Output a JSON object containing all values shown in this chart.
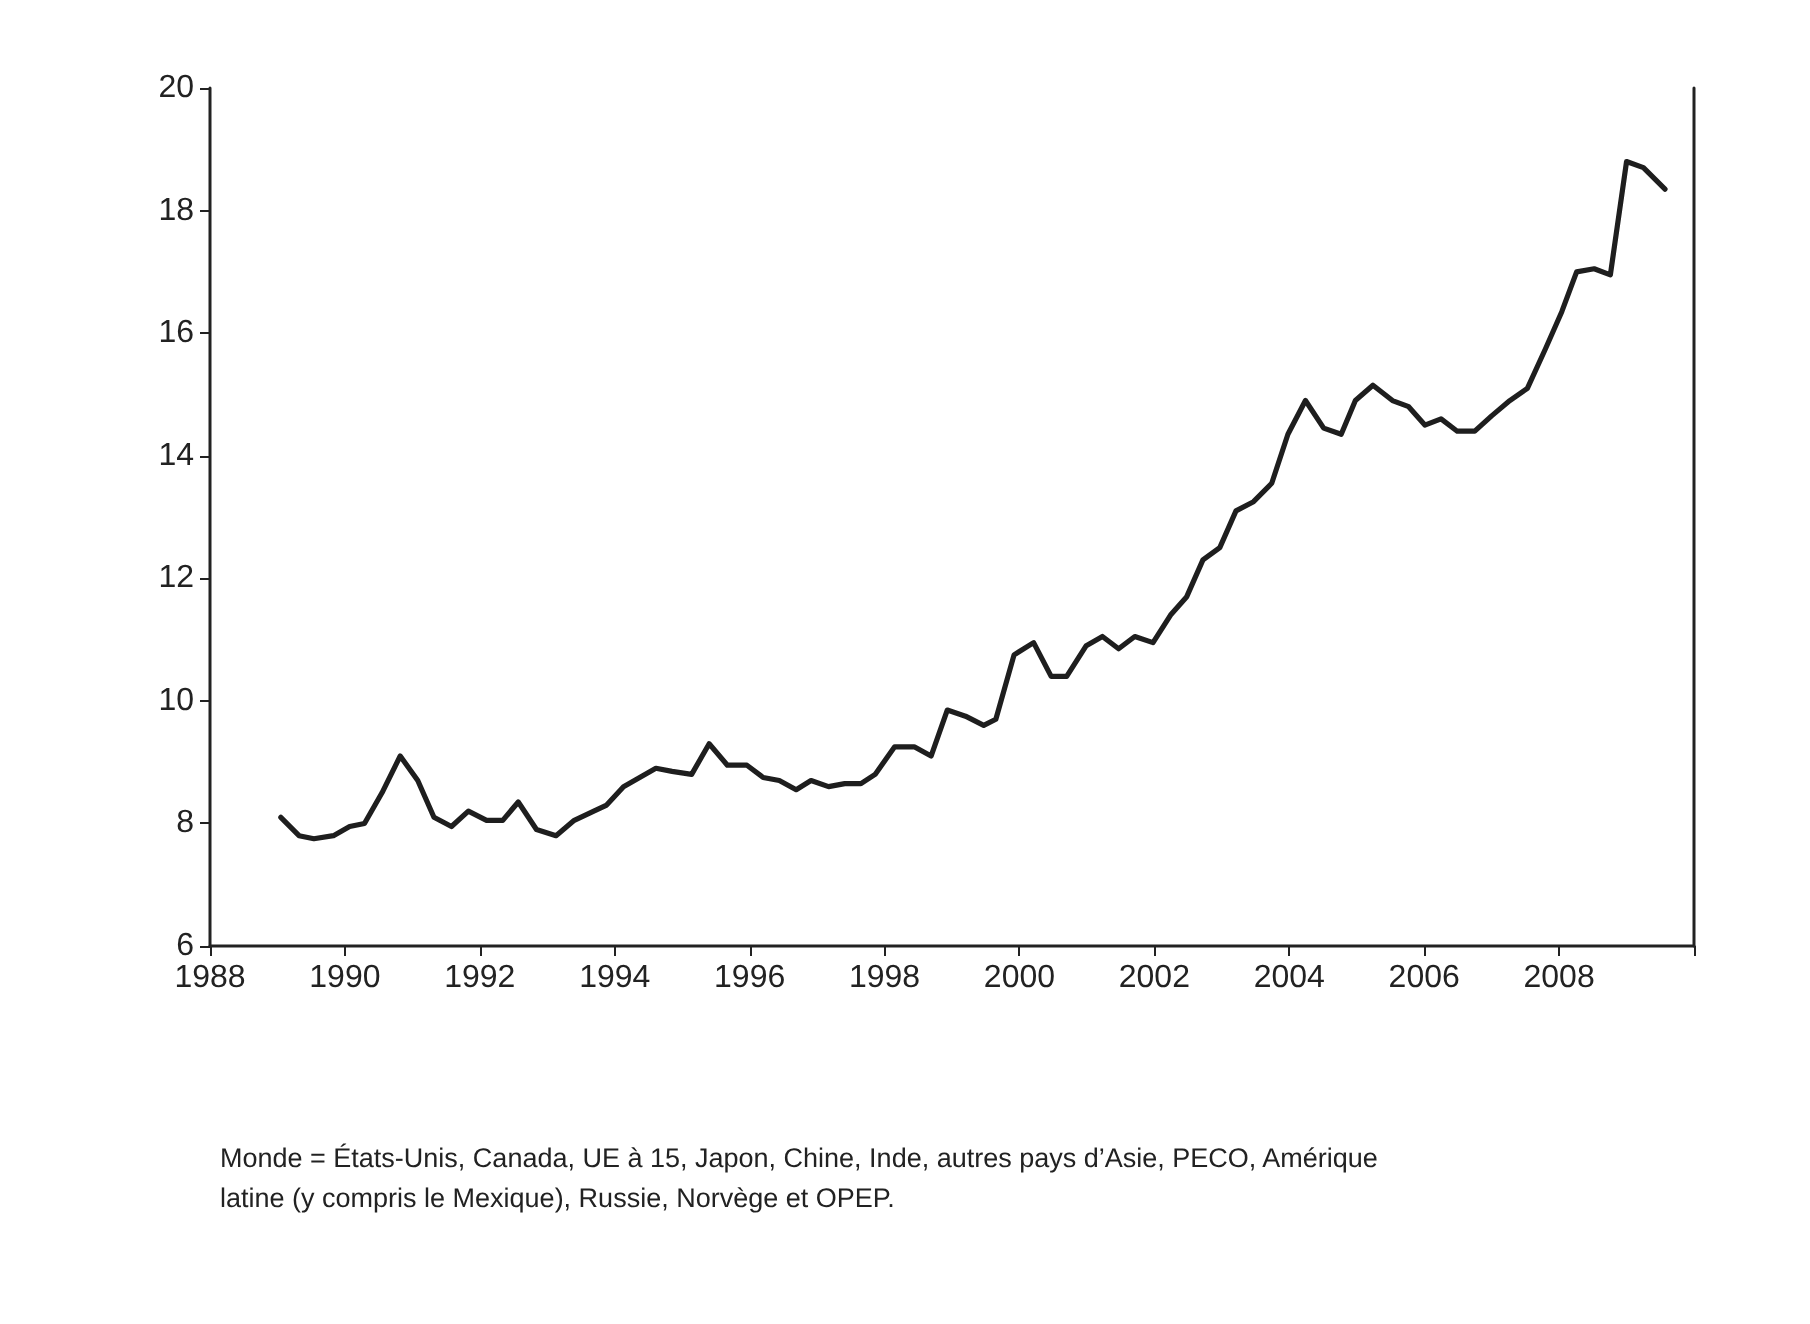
{
  "chart_data": {
    "type": "line",
    "x": [
      1989.05,
      1989.32,
      1989.54,
      1989.83,
      1990.07,
      1990.29,
      1990.55,
      1990.82,
      1991.08,
      1991.32,
      1991.58,
      1991.83,
      1992.1,
      1992.34,
      1992.57,
      1992.84,
      1993.13,
      1993.4,
      1993.69,
      1993.88,
      1994.13,
      1994.37,
      1994.61,
      1994.85,
      1995.14,
      1995.4,
      1995.67,
      1995.96,
      1996.2,
      1996.44,
      1996.69,
      1996.91,
      1997.17,
      1997.41,
      1997.65,
      1997.86,
      1998.15,
      1998.44,
      1998.69,
      1998.93,
      1999.2,
      1999.47,
      1999.65,
      1999.92,
      2000.21,
      2000.47,
      2000.7,
      2000.99,
      2001.23,
      2001.47,
      2001.71,
      2001.98,
      2002.24,
      2002.48,
      2002.72,
      2002.97,
      2003.21,
      2003.47,
      2003.74,
      2003.98,
      2004.24,
      2004.51,
      2004.77,
      2004.98,
      2005.24,
      2005.53,
      2005.77,
      2006.01,
      2006.25,
      2006.49,
      2006.75,
      2007.0,
      2007.27,
      2007.53,
      2007.8,
      2008.04,
      2008.26,
      2008.52,
      2008.76,
      2009.0,
      2009.25,
      2009.57
    ],
    "series": [
      {
        "color": "#1e1e1e",
        "values": [
          8.1,
          7.8,
          7.75,
          7.8,
          7.95,
          8.0,
          8.5,
          9.1,
          8.7,
          8.1,
          7.95,
          8.2,
          8.05,
          8.05,
          8.35,
          7.9,
          7.8,
          8.05,
          8.2,
          8.3,
          8.6,
          8.75,
          8.9,
          8.85,
          8.8,
          9.3,
          8.95,
          8.95,
          8.75,
          8.7,
          8.55,
          8.7,
          8.6,
          8.65,
          8.65,
          8.8,
          9.25,
          9.25,
          9.1,
          9.85,
          9.75,
          9.6,
          9.7,
          10.75,
          10.95,
          10.4,
          10.4,
          10.9,
          11.05,
          10.85,
          11.05,
          10.95,
          11.4,
          11.7,
          12.3,
          12.5,
          13.1,
          13.25,
          13.55,
          14.35,
          14.9,
          14.45,
          14.35,
          14.9,
          15.15,
          14.9,
          14.8,
          14.5,
          14.6,
          14.4,
          14.4,
          14.65,
          14.9,
          15.1,
          15.75,
          16.35,
          17.0,
          17.05,
          16.95,
          18.8,
          18.7,
          18.35
        ]
      }
    ],
    "xlim": [
      1988,
      2010
    ],
    "xticks": [
      1988,
      1990,
      1992,
      1994,
      1996,
      1998,
      2000,
      2002,
      2004,
      2006,
      2008,
      {
        "value": 2010,
        "label": null
      }
    ],
    "ylim": [
      6,
      20
    ],
    "yticks": [
      6,
      8,
      10,
      12,
      14,
      16,
      18,
      20
    ],
    "grid": false,
    "marker": "none",
    "line_style": "solid",
    "annotations": [
      "Monde = États-Unis, Canada, UE à 15, Japon, Chine, Inde, autres pays d’Asie, PECO, Amérique latine (y compris le Mexique), Russie, Norvège et OPEP."
    ]
  }
}
